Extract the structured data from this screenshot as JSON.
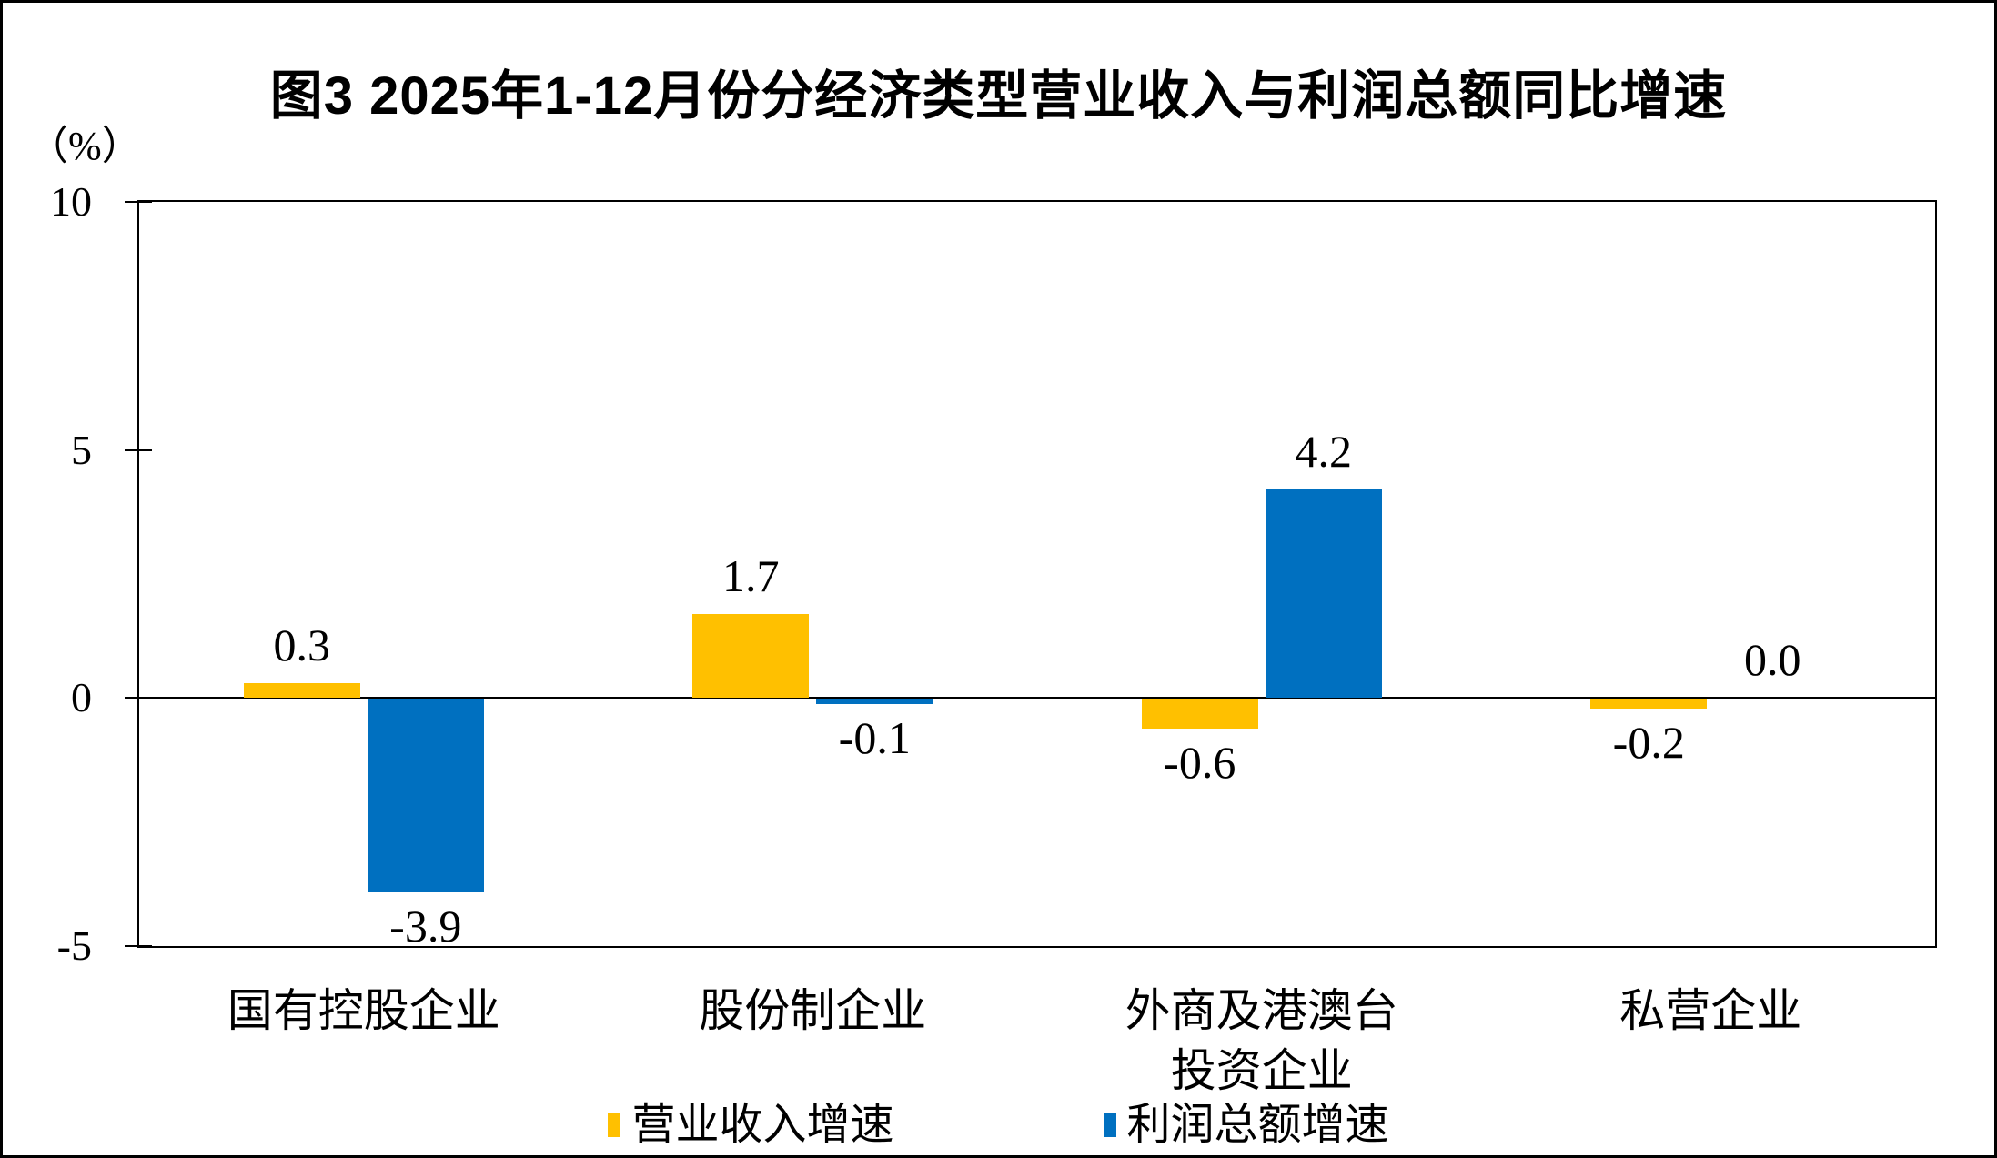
{
  "figure": {
    "title": "图3  2025年1-12月份分经济类型营业收入与利润总额同比增速",
    "unit_label": "（%）"
  },
  "chart_data": {
    "type": "bar",
    "title": "图3  2025年1-12月份分经济类型营业收入与利润总额同比增速",
    "ylabel": "（%）",
    "xlabel": "",
    "categories": [
      "国有控股企业",
      "股份制企业",
      "外商及港澳台\n投资企业",
      "私营企业"
    ],
    "series": [
      {
        "name": "营业收入增速",
        "color": "#FFC000",
        "values": [
          0.3,
          1.7,
          -0.6,
          -0.2
        ]
      },
      {
        "name": "利润总额增速",
        "color": "#0070C0",
        "values": [
          -3.9,
          -0.1,
          4.2,
          0.0
        ]
      }
    ],
    "value_labels": {
      "营业收入增速": [
        "0.3",
        "1.7",
        "-0.6",
        "-0.2"
      ],
      "利润总额增速": [
        "-3.9",
        "-0.1",
        "4.2",
        "0.0"
      ]
    },
    "ylim": [
      -5,
      10
    ],
    "yticks": [
      10,
      5,
      0,
      -5
    ],
    "grid": false,
    "legend_position": "bottom"
  }
}
